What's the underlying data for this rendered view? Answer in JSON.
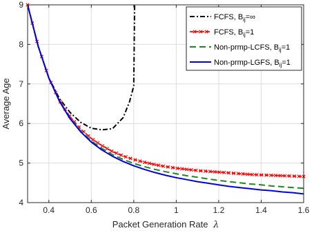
{
  "chart_data": {
    "type": "line",
    "xlabel": "Packet Generation Rate",
    "xlabel_symbol": "λ",
    "ylabel": "Average Age",
    "xlim": [
      0.3,
      1.6
    ],
    "ylim": [
      4,
      9
    ],
    "x_ticks": [
      0.4,
      0.6,
      0.8,
      1,
      1.2,
      1.4,
      1.6
    ],
    "x_tick_labels": [
      "0.4",
      "0.6",
      "0.8",
      "1",
      "1.2",
      "1.4",
      "1.6"
    ],
    "y_ticks": [
      4,
      5,
      6,
      7,
      8,
      9
    ],
    "y_tick_labels": [
      "4",
      "5",
      "6",
      "7",
      "8",
      "9"
    ],
    "grid": true,
    "legend_position": "top-right",
    "series": [
      {
        "name": "FCFS, B",
        "name_sub": "ij",
        "name_tail": "=∞",
        "color": "#000000",
        "style": "dashdot",
        "x": [
          0.3,
          0.35,
          0.4,
          0.45,
          0.5,
          0.55,
          0.6,
          0.65,
          0.7,
          0.75,
          0.78,
          0.8,
          0.802,
          0.804
        ],
        "y": [
          9.0,
          7.95,
          7.15,
          6.63,
          6.28,
          6.03,
          5.88,
          5.84,
          5.87,
          6.15,
          6.55,
          6.95,
          8.0,
          9.0
        ]
      },
      {
        "name": "FCFS, B",
        "name_sub": "ij",
        "name_tail": "=1",
        "color": "#ff0000",
        "style": "dash-marker",
        "x": [
          0.3,
          0.35,
          0.4,
          0.45,
          0.5,
          0.55,
          0.6,
          0.65,
          0.7,
          0.75,
          0.8,
          0.85,
          0.9,
          0.95,
          1.0,
          1.05,
          1.1,
          1.15,
          1.2,
          1.25,
          1.3,
          1.35,
          1.4,
          1.45,
          1.5,
          1.55,
          1.6
        ],
        "y": [
          9.0,
          7.95,
          7.15,
          6.58,
          6.17,
          5.86,
          5.62,
          5.44,
          5.29,
          5.18,
          5.09,
          5.02,
          4.96,
          4.91,
          4.87,
          4.84,
          4.81,
          4.79,
          4.77,
          4.75,
          4.73,
          4.71,
          4.7,
          4.69,
          4.68,
          4.67,
          4.66
        ]
      },
      {
        "name": "Non-prmp-LCFS, B",
        "name_sub": "ij",
        "name_tail": "=1",
        "color": "#1a8a1a",
        "style": "dashed",
        "x": [
          0.3,
          0.35,
          0.4,
          0.45,
          0.5,
          0.55,
          0.6,
          0.65,
          0.7,
          0.75,
          0.8,
          0.85,
          0.9,
          0.95,
          1.0,
          1.05,
          1.1,
          1.15,
          1.2,
          1.25,
          1.3,
          1.35,
          1.4,
          1.45,
          1.5,
          1.55,
          1.6
        ],
        "y": [
          9.0,
          7.95,
          7.15,
          6.57,
          6.14,
          5.81,
          5.56,
          5.37,
          5.21,
          5.09,
          4.99,
          4.91,
          4.84,
          4.78,
          4.73,
          4.68,
          4.64,
          4.6,
          4.56,
          4.53,
          4.5,
          4.47,
          4.45,
          4.42,
          4.4,
          4.38,
          4.36
        ]
      },
      {
        "name": "Non-prmp-LGFS, B",
        "name_sub": "ij",
        "name_tail": "=1",
        "color": "#0000e6",
        "style": "solid",
        "x": [
          0.3,
          0.35,
          0.4,
          0.45,
          0.5,
          0.55,
          0.6,
          0.65,
          0.7,
          0.75,
          0.8,
          0.85,
          0.9,
          0.95,
          1.0,
          1.05,
          1.1,
          1.15,
          1.2,
          1.25,
          1.3,
          1.35,
          1.4,
          1.45,
          1.5,
          1.55,
          1.6
        ],
        "y": [
          9.0,
          7.95,
          7.15,
          6.56,
          6.12,
          5.79,
          5.53,
          5.33,
          5.17,
          5.04,
          4.93,
          4.84,
          4.76,
          4.69,
          4.63,
          4.58,
          4.53,
          4.49,
          4.45,
          4.41,
          4.38,
          4.35,
          4.32,
          4.3,
          4.27,
          4.25,
          4.22
        ]
      }
    ]
  }
}
